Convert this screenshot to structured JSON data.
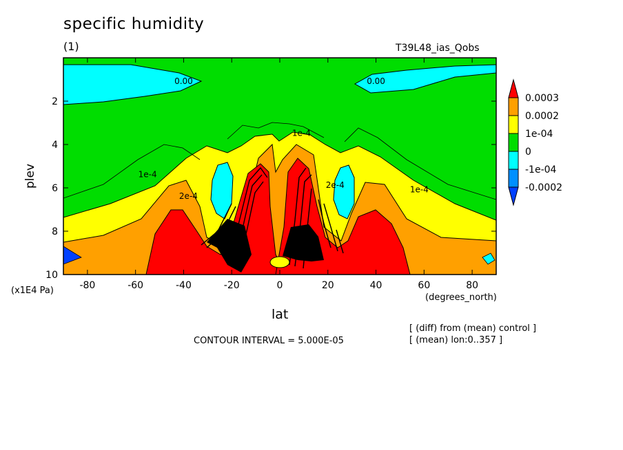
{
  "chart_data": {
    "type": "contour",
    "title": "specific humidity",
    "panel_label": "(1)",
    "run_label": "T39L48_ias_Qobs",
    "xlabel": "lat",
    "x_unit": "(degrees_north)",
    "ylabel": "plev",
    "y_unit": "(x1E4 Pa)",
    "xlim": [
      -90,
      90
    ],
    "ylim": [
      10,
      0
    ],
    "x_ticks": [
      -80,
      -60,
      -40,
      -20,
      0,
      20,
      40,
      60,
      80
    ],
    "x_tick_labels": [
      "-80",
      "-60",
      "-40",
      "-20",
      "0",
      "20",
      "40",
      "60",
      "80"
    ],
    "y_ticks": [
      2,
      4,
      6,
      8,
      10
    ],
    "y_tick_labels": [
      "2",
      "4",
      "6",
      "8",
      "10"
    ],
    "contour_interval_text": "CONTOUR INTERVAL = 5.000E-05",
    "notes": [
      "[ (diff) from (mean) control ]",
      "[ (mean) lon:0..357 ]"
    ],
    "contour_labels": [
      "0.00",
      "0.00",
      "1e-4",
      "1e-4",
      "1e-4",
      "2e-4",
      "2e-4"
    ],
    "legend": {
      "levels": [
        "0.0003",
        "0.0002",
        "1e-04",
        "0",
        "-1e-04",
        "-0.0002"
      ],
      "colors": [
        "#ff0000",
        "#ffa000",
        "#ffff00",
        "#00dd00",
        "#00ffff",
        "#0090ff",
        "#0040ff"
      ]
    },
    "region_values": {
      "background": 5e-05,
      "upper_negative_pockets": -3e-05,
      "midlevel_positive_band": 0.00012,
      "subtropical_negative_cells": -7e-05,
      "lower_tropospheric_maxima": 0.0004
    }
  }
}
